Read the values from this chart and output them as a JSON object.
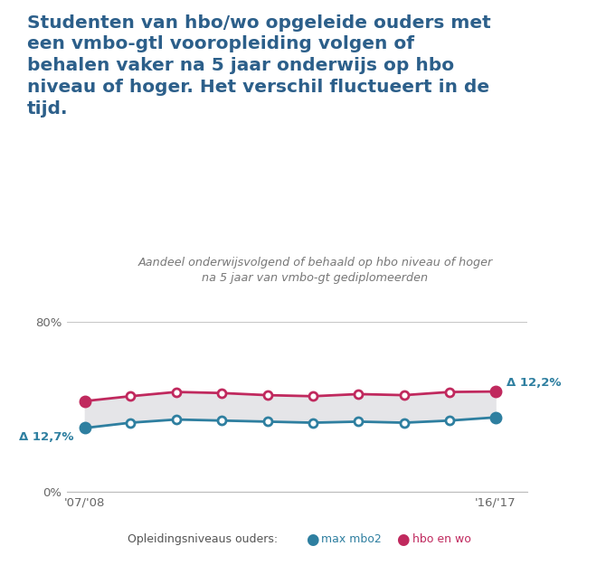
{
  "title_line1": "Studenten van hbo/wo opgeleide ouders met",
  "title_line2": "een vmbo-gtl vooropleiding volgen of",
  "title_line3": "behalen vaker na 5 jaar onderwijs op hbo",
  "title_line4": "niveau of hoger. Het verschil fluctueert in de",
  "title_line5": "tijd.",
  "subtitle_line1": "Aandeel onderwijsvolgend of behaald op hbo niveau of hoger",
  "subtitle_line2": "na 5 jaar van vmbo-gt gediplomeerden",
  "xlabel_start": "'07/'08",
  "xlabel_end": "'16/'17",
  "legend_label": "Opleidingsniveaus ouders:",
  "legend_mbo": "max mbo2",
  "legend_hbo": "hbo en wo",
  "x_values": [
    2007,
    2008,
    2009,
    2010,
    2011,
    2012,
    2013,
    2014,
    2015,
    2016
  ],
  "mbo2_values": [
    30.0,
    32.5,
    34.0,
    33.5,
    33.0,
    32.5,
    33.0,
    32.5,
    33.5,
    35.0
  ],
  "hbo_values": [
    42.7,
    45.0,
    47.0,
    46.5,
    45.5,
    45.0,
    46.0,
    45.5,
    47.0,
    47.2
  ],
  "color_mbo": "#2e7fa0",
  "color_hbo": "#c0295e",
  "color_fill": "#e5e5e8",
  "color_title": "#2c5f8a",
  "color_axis": "#bbbbbb",
  "delta_start_label": "Δ 12,7%",
  "delta_end_label": "Δ 12,2%",
  "background_color": "#ffffff",
  "ylim": [
    0,
    80
  ]
}
